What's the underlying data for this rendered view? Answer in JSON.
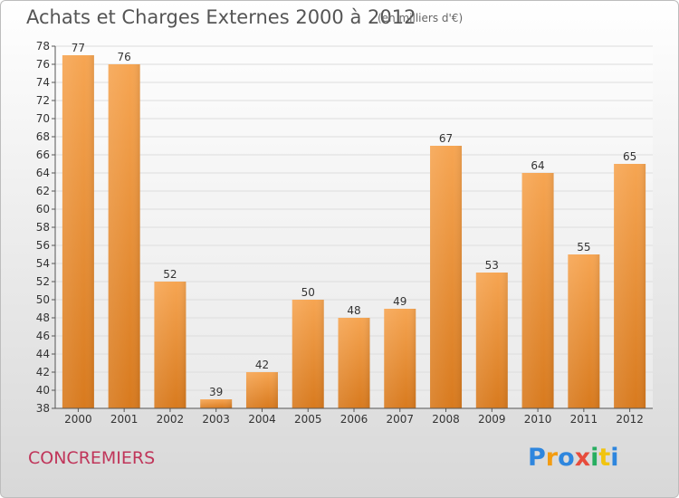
{
  "header": {
    "title": "Achats et Charges Externes 2000 à 2012",
    "subtitle": "(en milliers d'€)"
  },
  "footer": {
    "commune": "CONCREMIERS"
  },
  "logo": {
    "letters": [
      "P",
      "r",
      "o",
      "x",
      "i",
      "t",
      "i"
    ],
    "colors": [
      "#2e86de",
      "#f39c12",
      "#2e86de",
      "#e74c3c",
      "#27ae60",
      "#f1c40f",
      "#2e86de"
    ]
  },
  "colors": {
    "bar": "#f0a04b",
    "bar_dark": "#d87a1e",
    "grid": "#dddddd",
    "axis": "#555555"
  },
  "chart_data": {
    "type": "bar",
    "categories": [
      "2000",
      "2001",
      "2002",
      "2003",
      "2004",
      "2005",
      "2006",
      "2007",
      "2008",
      "2009",
      "2010",
      "2011",
      "2012"
    ],
    "values": [
      77,
      76,
      52,
      39,
      42,
      50,
      48,
      49,
      67,
      53,
      64,
      55,
      65
    ],
    "title": "Achats et Charges Externes 2000 à 2012",
    "xlabel": "",
    "ylabel": "",
    "ylim": [
      38,
      78
    ],
    "yticks": [
      "38",
      "40",
      "42",
      "44",
      "46",
      "48",
      "50",
      "52",
      "54",
      "56",
      "58",
      "60",
      "62",
      "64",
      "66",
      "68",
      "70",
      "72",
      "74",
      "76",
      "78"
    ],
    "data_labels": [
      "77",
      "76",
      "52",
      "39",
      "42",
      "50",
      "48",
      "49",
      "67",
      "53",
      "64",
      "55",
      "65"
    ],
    "grid": true,
    "legend": "none"
  }
}
